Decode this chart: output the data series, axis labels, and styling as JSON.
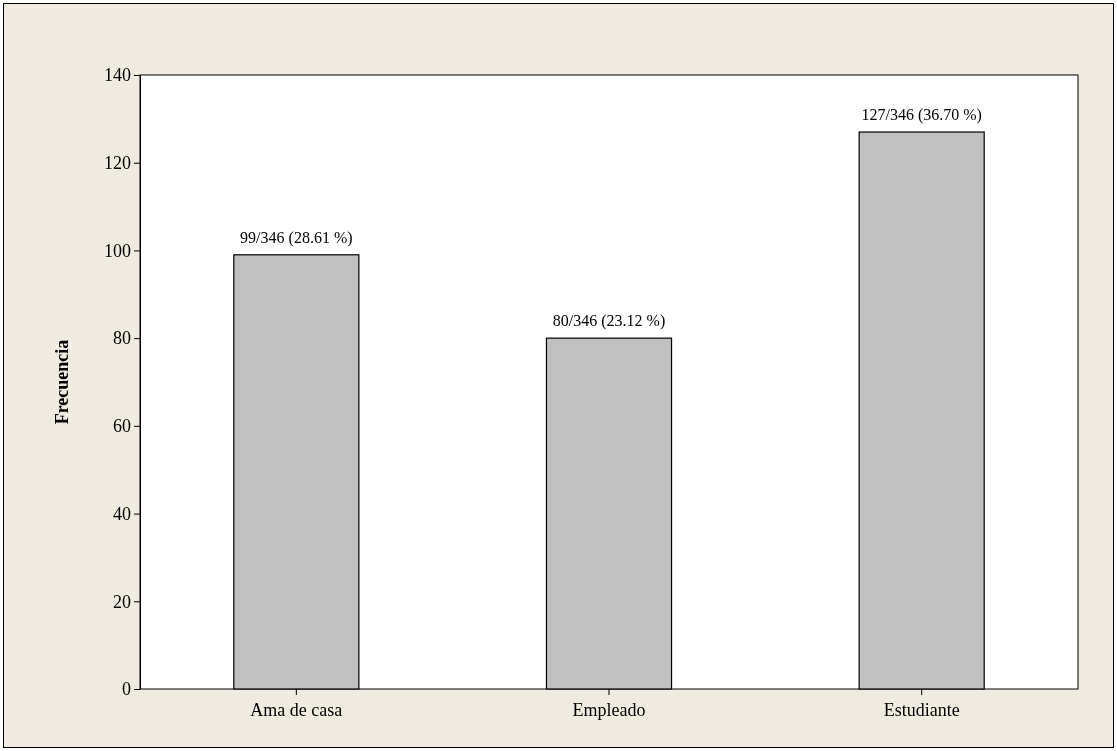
{
  "chart_data": {
    "type": "bar",
    "ylabel": "Frecuencia",
    "categories": [
      "Ama de casa",
      "Empleado",
      "Estudiante"
    ],
    "values": [
      99,
      80,
      127
    ],
    "color": "#c0c0c0",
    "value_labels": [
      "99/346 (28.61 %)",
      "80/346 (23.12 %)",
      "127/346 (36.70 %)"
    ],
    "ylim": [
      0,
      140
    ],
    "yticks": [
      0,
      20,
      40,
      60,
      80,
      100,
      120,
      140
    ],
    "grid": false
  }
}
